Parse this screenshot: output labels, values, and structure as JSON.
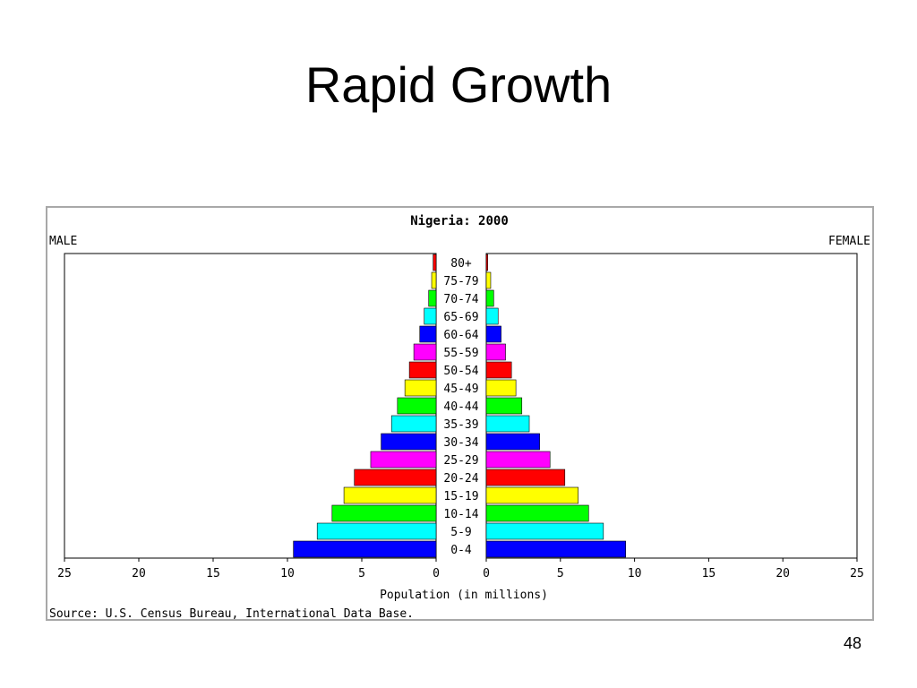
{
  "slide": {
    "title": "Rapid Growth",
    "number": "48"
  },
  "chart_data": {
    "type": "bar",
    "orientation": "horizontal-population-pyramid",
    "title": "Nigeria: 2000",
    "left_label": "MALE",
    "right_label": "FEMALE",
    "xlabel": "Population (in millions)",
    "source": "Source: U.S. Census Bureau, International Data Base.",
    "xlim": [
      0,
      25
    ],
    "x_ticks": [
      25,
      20,
      15,
      10,
      5,
      0
    ],
    "categories": [
      "0-4",
      "5-9",
      "10-14",
      "15-19",
      "20-24",
      "25-29",
      "30-34",
      "35-39",
      "40-44",
      "45-49",
      "50-54",
      "55-59",
      "60-64",
      "65-69",
      "70-74",
      "75-79",
      "80+"
    ],
    "colors": [
      "#0000ff",
      "#00ffff",
      "#00ff00",
      "#ffff00",
      "#ff0000",
      "#ff00ff",
      "#0000ff",
      "#00ffff",
      "#00ff00",
      "#ffff00",
      "#ff0000",
      "#ff00ff",
      "#0000ff",
      "#00ffff",
      "#00ff00",
      "#ffff00",
      "#ff0000"
    ],
    "series": [
      {
        "name": "MALE",
        "values": [
          9.6,
          8.0,
          7.0,
          6.2,
          5.5,
          4.4,
          3.7,
          3.0,
          2.6,
          2.1,
          1.8,
          1.5,
          1.1,
          0.8,
          0.5,
          0.3,
          0.2
        ]
      },
      {
        "name": "FEMALE",
        "values": [
          9.4,
          7.9,
          6.9,
          6.2,
          5.3,
          4.3,
          3.6,
          2.9,
          2.4,
          2.0,
          1.7,
          1.3,
          1.0,
          0.8,
          0.5,
          0.3,
          0.1
        ]
      }
    ],
    "grid": false,
    "legend": "none"
  }
}
